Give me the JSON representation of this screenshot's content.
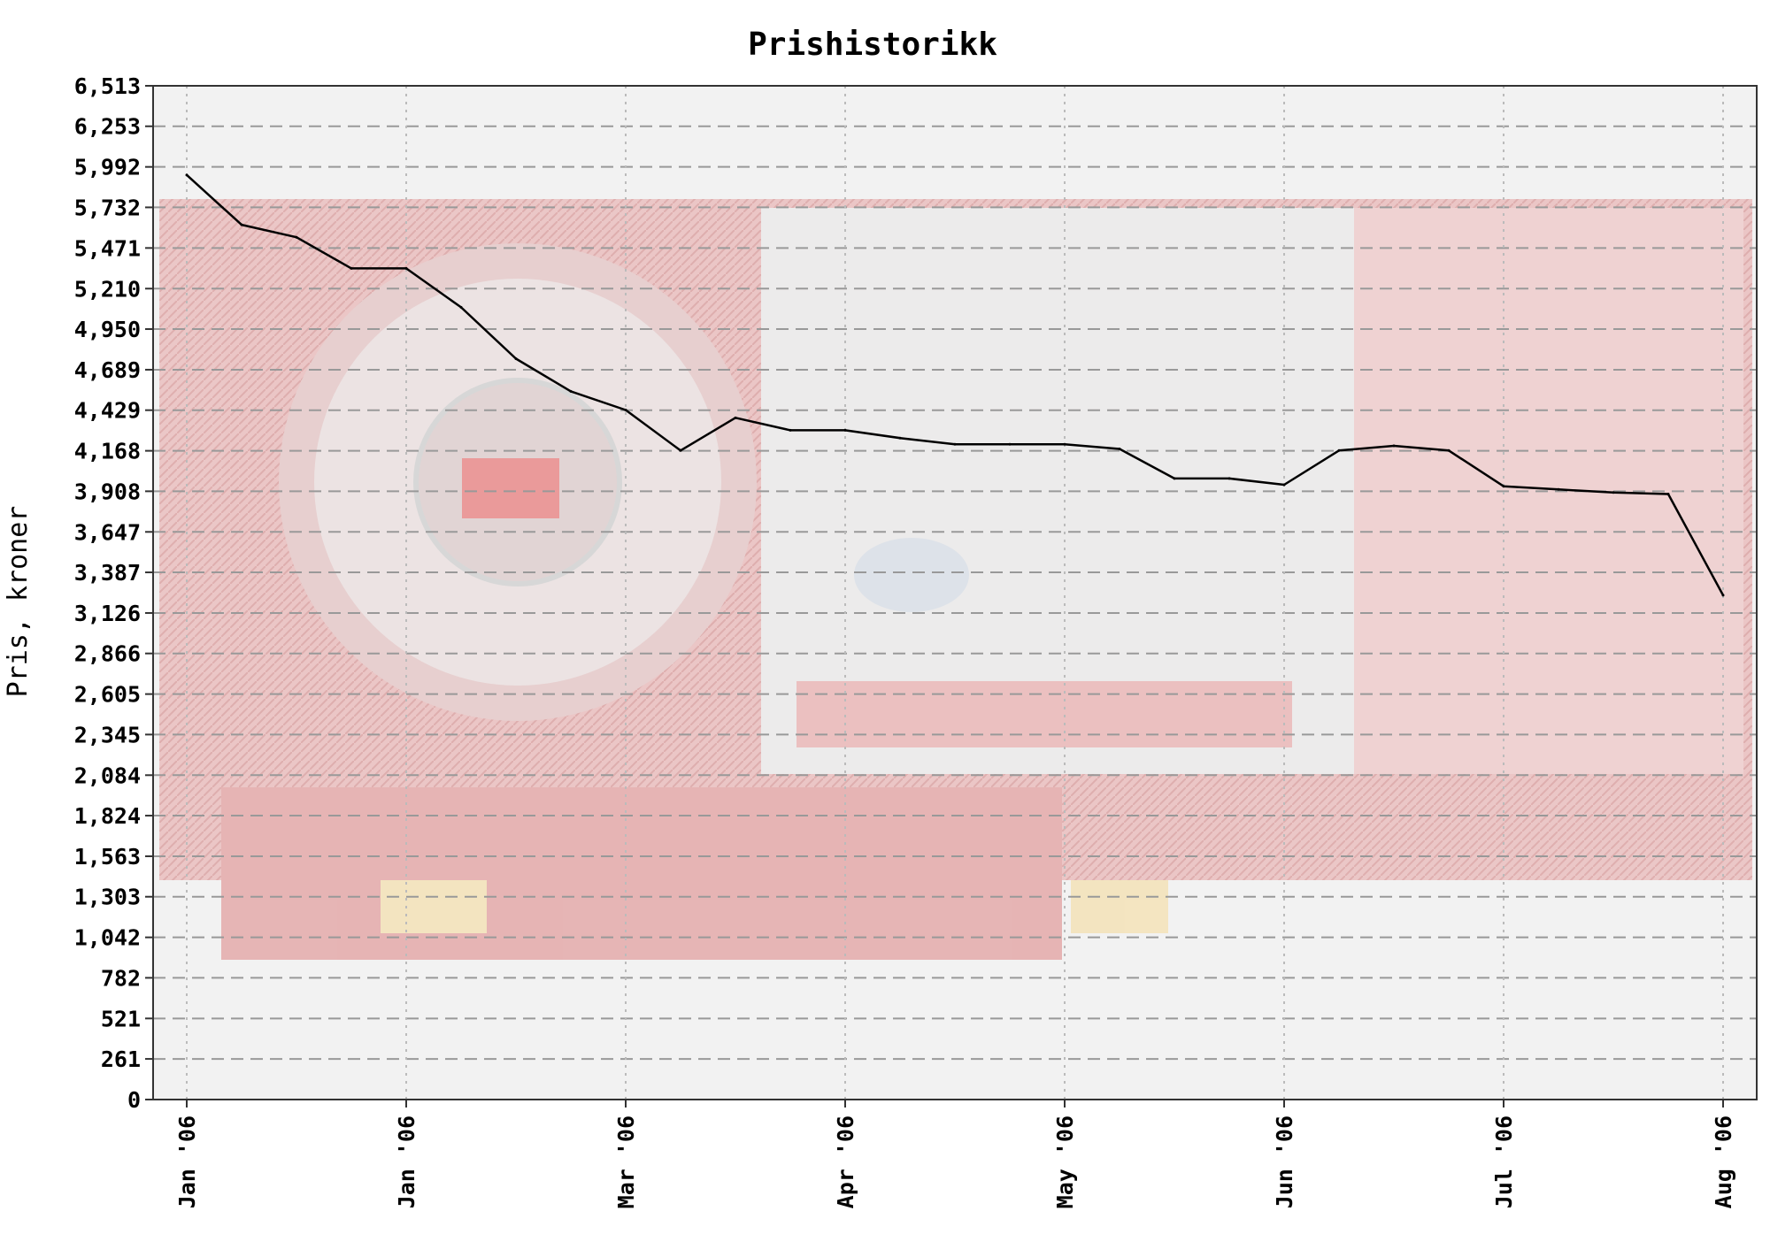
{
  "chart_data": {
    "type": "line",
    "title": "Prishistorikk",
    "ylabel": "Pris, kroner",
    "xlabel": "",
    "ylim": [
      0,
      6513
    ],
    "y_ticks": [
      "0",
      "261",
      "521",
      "782",
      "1,042",
      "1,303",
      "1,563",
      "1,824",
      "2,084",
      "2,345",
      "2,605",
      "2,866",
      "3,126",
      "3,387",
      "3,647",
      "3,908",
      "4,168",
      "4,429",
      "4,689",
      "4,950",
      "5,210",
      "5,471",
      "5,732",
      "5,992",
      "6,253",
      "6,513"
    ],
    "y_tick_values": [
      0,
      261,
      521,
      782,
      1042,
      1303,
      1563,
      1824,
      2084,
      2345,
      2605,
      2866,
      3126,
      3387,
      3647,
      3908,
      4168,
      4429,
      4689,
      4950,
      5210,
      5471,
      5732,
      5992,
      6253,
      6513
    ],
    "x_ticks": [
      "Jan '06",
      "Jan '06",
      "Mar '06",
      "Apr '06",
      "May '06",
      "Jun '06",
      "Jul '06",
      "Aug '06"
    ],
    "grid": true,
    "background_image": "ATI Radeon graphics card (faded watermark)",
    "colors": {
      "line": "#000000",
      "grid": "#aaaaaa",
      "plot_bg": "#f2f2f2",
      "card": "#e8b4b4"
    },
    "series": [
      {
        "x": [
          0,
          0.25,
          0.5,
          0.75,
          1,
          1.25,
          1.5,
          1.75,
          2,
          2.25,
          2.5,
          2.75,
          3,
          3.25,
          3.5,
          3.75,
          4,
          4.25,
          4.5,
          4.75,
          5,
          5.25,
          5.5,
          5.75,
          6,
          6.25,
          6.5,
          6.75,
          7
        ],
        "values": [
          5940,
          5620,
          5540,
          5340,
          5340,
          5090,
          4760,
          4550,
          4430,
          4170,
          4380,
          4300,
          4300,
          4250,
          4210,
          4210,
          4210,
          4180,
          3990,
          3990,
          3950,
          4170,
          4200,
          4170,
          3940,
          3920,
          3900,
          3890,
          3240
        ]
      }
    ]
  }
}
